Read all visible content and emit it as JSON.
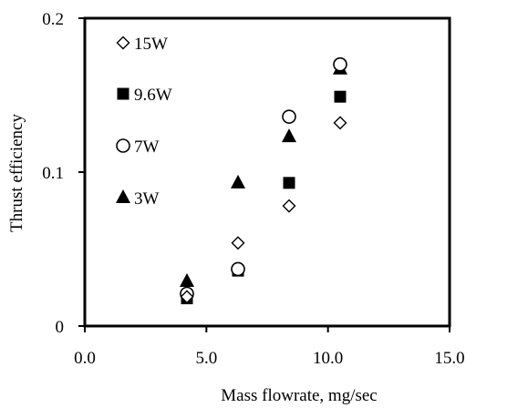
{
  "chart_data": {
    "type": "scatter",
    "title": "",
    "xlabel": "Mass flowrate, mg/sec",
    "ylabel": "Thrust efficiency",
    "xlim": [
      0,
      15
    ],
    "ylim": [
      0,
      0.2
    ],
    "x_tick_values": [
      0,
      5,
      10,
      15
    ],
    "x_tick_labels": [
      "0.0",
      "5.0",
      "10.0",
      "15.0"
    ],
    "y_tick_values": [
      0,
      0.1,
      0.2
    ],
    "y_tick_labels": [
      "0",
      "0.1",
      "0.2"
    ],
    "grid": false,
    "legend_position": "top-left",
    "series": [
      {
        "name": "15W",
        "marker": "open-diamond",
        "points": [
          {
            "x": 4.2,
            "y": 0.019
          },
          {
            "x": 6.3,
            "y": 0.054
          },
          {
            "x": 8.4,
            "y": 0.078
          },
          {
            "x": 10.5,
            "y": 0.132
          }
        ]
      },
      {
        "name": "9.6W",
        "marker": "filled-square",
        "points": [
          {
            "x": 4.2,
            "y": 0.018
          },
          {
            "x": 6.3,
            "y": 0.036
          },
          {
            "x": 8.4,
            "y": 0.093
          },
          {
            "x": 10.5,
            "y": 0.149
          }
        ]
      },
      {
        "name": "7W",
        "marker": "open-circle",
        "points": [
          {
            "x": 4.2,
            "y": 0.021
          },
          {
            "x": 6.3,
            "y": 0.037
          },
          {
            "x": 8.4,
            "y": 0.136
          },
          {
            "x": 10.5,
            "y": 0.17
          }
        ]
      },
      {
        "name": "3W",
        "marker": "filled-triangle",
        "points": [
          {
            "x": 4.2,
            "y": 0.029
          },
          {
            "x": 6.3,
            "y": 0.093
          },
          {
            "x": 8.4,
            "y": 0.123
          },
          {
            "x": 10.5,
            "y": 0.167
          }
        ]
      }
    ]
  }
}
